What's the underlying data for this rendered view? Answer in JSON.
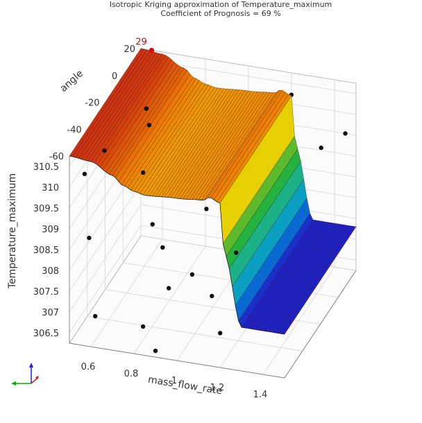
{
  "chart_data": {
    "type": "surface3d",
    "title": "Isotropic Kriging approximation of Temperature_maximum",
    "subtitle": "Coefficient of Prognosis = 69 %",
    "xlabel": "mass_flow_rate",
    "ylabel": "angle",
    "zlabel": "Temperature_maximum",
    "x_ticks": [
      "1.4",
      "1.2",
      "1",
      "0.8",
      "0.6"
    ],
    "y_ticks": [
      "20",
      "0",
      "-20",
      "-40",
      "-60"
    ],
    "z_ticks": [
      "310.5",
      "310",
      "309.5",
      "309",
      "308.5",
      "308",
      "307.5",
      "307",
      "306.5"
    ],
    "xlim": [
      0.5,
      1.5
    ],
    "ylim": [
      -60,
      20
    ],
    "zlim": [
      306.25,
      310.75
    ],
    "grid": true,
    "surface": {
      "x": [
        1.5,
        1.4,
        1.3,
        1.22,
        1.2,
        1.15,
        1.12,
        1.0,
        0.85,
        0.8,
        0.75,
        0.7,
        0.6,
        0.5
      ],
      "z": [
        307.3,
        307.3,
        307.3,
        309.0,
        310.2,
        310.3,
        310.2,
        310.15,
        310.1,
        310.15,
        310.25,
        310.45,
        310.7,
        310.75
      ],
      "colorscale": [
        "#2020c8",
        "#0090d8",
        "#18b0a8",
        "#20b040",
        "#80c020",
        "#f0d000",
        "#f08000",
        "#d03010"
      ]
    },
    "points": [
      {
        "x": 1.45,
        "y": 20,
        "z": 309.5
      },
      {
        "x": 1.4,
        "y": 5,
        "z": 309.6
      },
      {
        "x": 1.22,
        "y": 15,
        "z": 310.4
      },
      {
        "x": 1.3,
        "y": -10,
        "z": 310.6
      },
      {
        "x": 1.02,
        "y": -5,
        "z": 310.2
      },
      {
        "x": 1.0,
        "y": -30,
        "z": 310.3
      },
      {
        "x": 0.95,
        "y": 0,
        "z": 310.6
      },
      {
        "x": 0.9,
        "y": -20,
        "z": 310.5
      },
      {
        "x": 0.88,
        "y": -35,
        "z": 310.2
      },
      {
        "x": 0.85,
        "y": 10,
        "z": 310.4
      },
      {
        "x": 0.8,
        "y": -5,
        "z": 310.3
      },
      {
        "x": 0.78,
        "y": -45,
        "z": 310.1
      },
      {
        "x": 0.72,
        "y": 5,
        "z": 310.6
      },
      {
        "x": 0.7,
        "y": -25,
        "z": 310.5
      },
      {
        "x": 0.65,
        "y": -10,
        "z": 310.4
      },
      {
        "x": 0.6,
        "y": 15,
        "z": 310.7
      },
      {
        "x": 0.58,
        "y": -40,
        "z": 310.3
      },
      {
        "x": 0.55,
        "y": -55,
        "z": 310.2
      },
      {
        "x": 0.58,
        "y": 10,
        "z": 309.3
      },
      {
        "x": 0.55,
        "y": -50,
        "z": 308.5
      },
      {
        "x": 0.62,
        "y": -60,
        "z": 307.0
      },
      {
        "x": 1.35,
        "y": -55,
        "z": 308.0
      },
      {
        "x": 1.3,
        "y": -50,
        "z": 307.9
      },
      {
        "x": 1.45,
        "y": -45,
        "z": 308.3
      },
      {
        "x": 1.25,
        "y": -25,
        "z": 308.9
      },
      {
        "x": 1.15,
        "y": -30,
        "z": 308.0
      },
      {
        "x": 1.05,
        "y": -55,
        "z": 308.2
      },
      {
        "x": 0.95,
        "y": -15,
        "z": 308.4
      },
      {
        "x": 0.85,
        "y": -40,
        "z": 308.2
      },
      {
        "x": 0.72,
        "y": -20,
        "z": 308.0
      },
      {
        "x": 1.18,
        "y": -55,
        "z": 306.9
      },
      {
        "x": 1.1,
        "y": -45,
        "z": 307.4
      },
      {
        "x": 0.92,
        "y": -50,
        "z": 307.6
      },
      {
        "x": 0.78,
        "y": -45,
        "z": 306.4
      },
      {
        "x": 0.9,
        "y": -60,
        "z": 306.4
      }
    ],
    "highlight": {
      "label": "29",
      "x": 0.55,
      "y": 20,
      "z": 310.75,
      "color": "#e00000"
    }
  }
}
